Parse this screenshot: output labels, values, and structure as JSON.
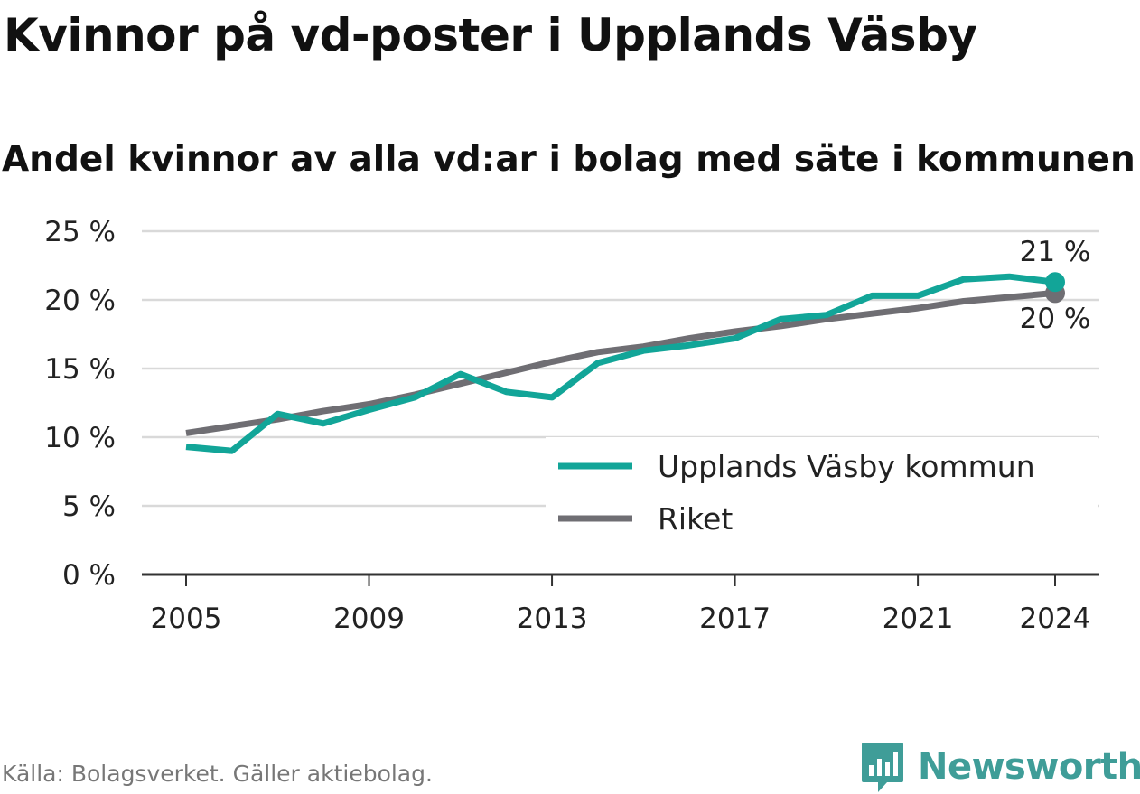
{
  "header": {
    "title": "Kvinnor på vd-poster i Upplands Väsby",
    "subtitle": "Andel kvinnor av alla vd:ar i bolag med säte i kommunen"
  },
  "footer": {
    "source": "Källa: Bolagsverket. Gäller aktiebolag.",
    "brand": "Newsworthy"
  },
  "colors": {
    "series1": "#12a598",
    "series2": "#6f6e73",
    "grid": "#d9d9d9",
    "axis": "#333333",
    "brand": "#3f9d98"
  },
  "chart_data": {
    "type": "line",
    "x": [
      2005,
      2006,
      2007,
      2008,
      2009,
      2010,
      2011,
      2012,
      2013,
      2014,
      2015,
      2016,
      2017,
      2018,
      2019,
      2020,
      2021,
      2022,
      2023,
      2024
    ],
    "x_ticks": [
      "2005",
      "2009",
      "2013",
      "2017",
      "2021",
      "2024"
    ],
    "y_ticks": [
      "0 %",
      "5 %",
      "10 %",
      "15 %",
      "20 %",
      "25 %"
    ],
    "ylim": [
      0,
      25
    ],
    "grid": true,
    "legend_position": "bottom-right",
    "series": [
      {
        "name": "Upplands Väsby kommun",
        "values": [
          9.3,
          9.0,
          11.7,
          11.0,
          12.0,
          12.9,
          14.6,
          13.3,
          12.9,
          15.4,
          16.3,
          16.7,
          17.2,
          18.6,
          18.9,
          20.3,
          20.3,
          21.5,
          21.7,
          21.3
        ],
        "end_label": "21 %"
      },
      {
        "name": "Riket",
        "values": [
          10.3,
          10.8,
          11.3,
          11.9,
          12.4,
          13.1,
          13.9,
          14.7,
          15.5,
          16.2,
          16.6,
          17.2,
          17.7,
          18.1,
          18.6,
          19.0,
          19.4,
          19.9,
          20.2,
          20.5
        ],
        "end_label": "20 %"
      }
    ]
  }
}
